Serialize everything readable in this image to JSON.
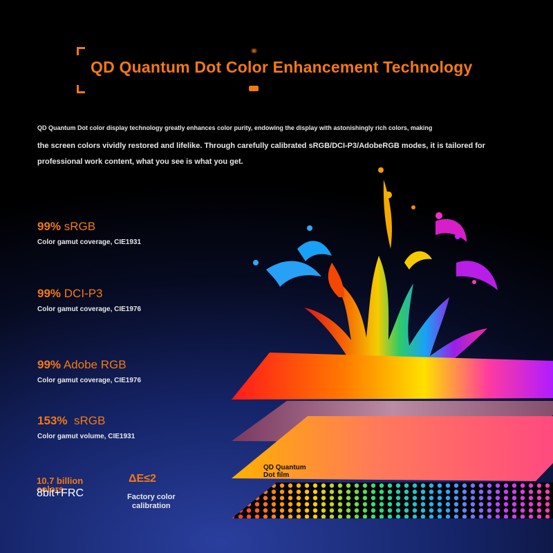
{
  "title": "QD Quantum Dot Color Enhancement Technology",
  "intro": [
    "QD Quantum Dot color display technology greatly enhances color purity, endowing the display with astonishingly rich colors, making",
    "the screen colors vividly restored and lifelike. Through carefully calibrated sRGB/DCI-P3/AdobeRGB modes, it is tailored for",
    "professional work content, what you see is what you get."
  ],
  "specs": [
    {
      "percent": "99%",
      "name": "sRGB",
      "desc": "Color gamut coverage, CIE1931"
    },
    {
      "percent": "99%",
      "name": "DCI-P3",
      "desc": "Color gamut coverage, CIE1976"
    },
    {
      "percent": "99%",
      "name": "Adobe RGB",
      "desc": "Color gamut coverage, CIE1976"
    },
    {
      "percent": "153%",
      "name": "sRGB",
      "desc": "Color gamut volume, CIE1931"
    }
  ],
  "bits": {
    "colors": "10.7 billion colors",
    "depth": "8bit+FRC"
  },
  "delta": {
    "value": "ΔE≤2",
    "label_line1": "Factory color",
    "label_line2": "calibration"
  },
  "layers": {
    "film_label_line1": "QD Quantum",
    "film_label_line2": "Dot film"
  },
  "colors": {
    "accent": "#f47a12",
    "text": "#e8e8e8",
    "background": "#070b22"
  }
}
